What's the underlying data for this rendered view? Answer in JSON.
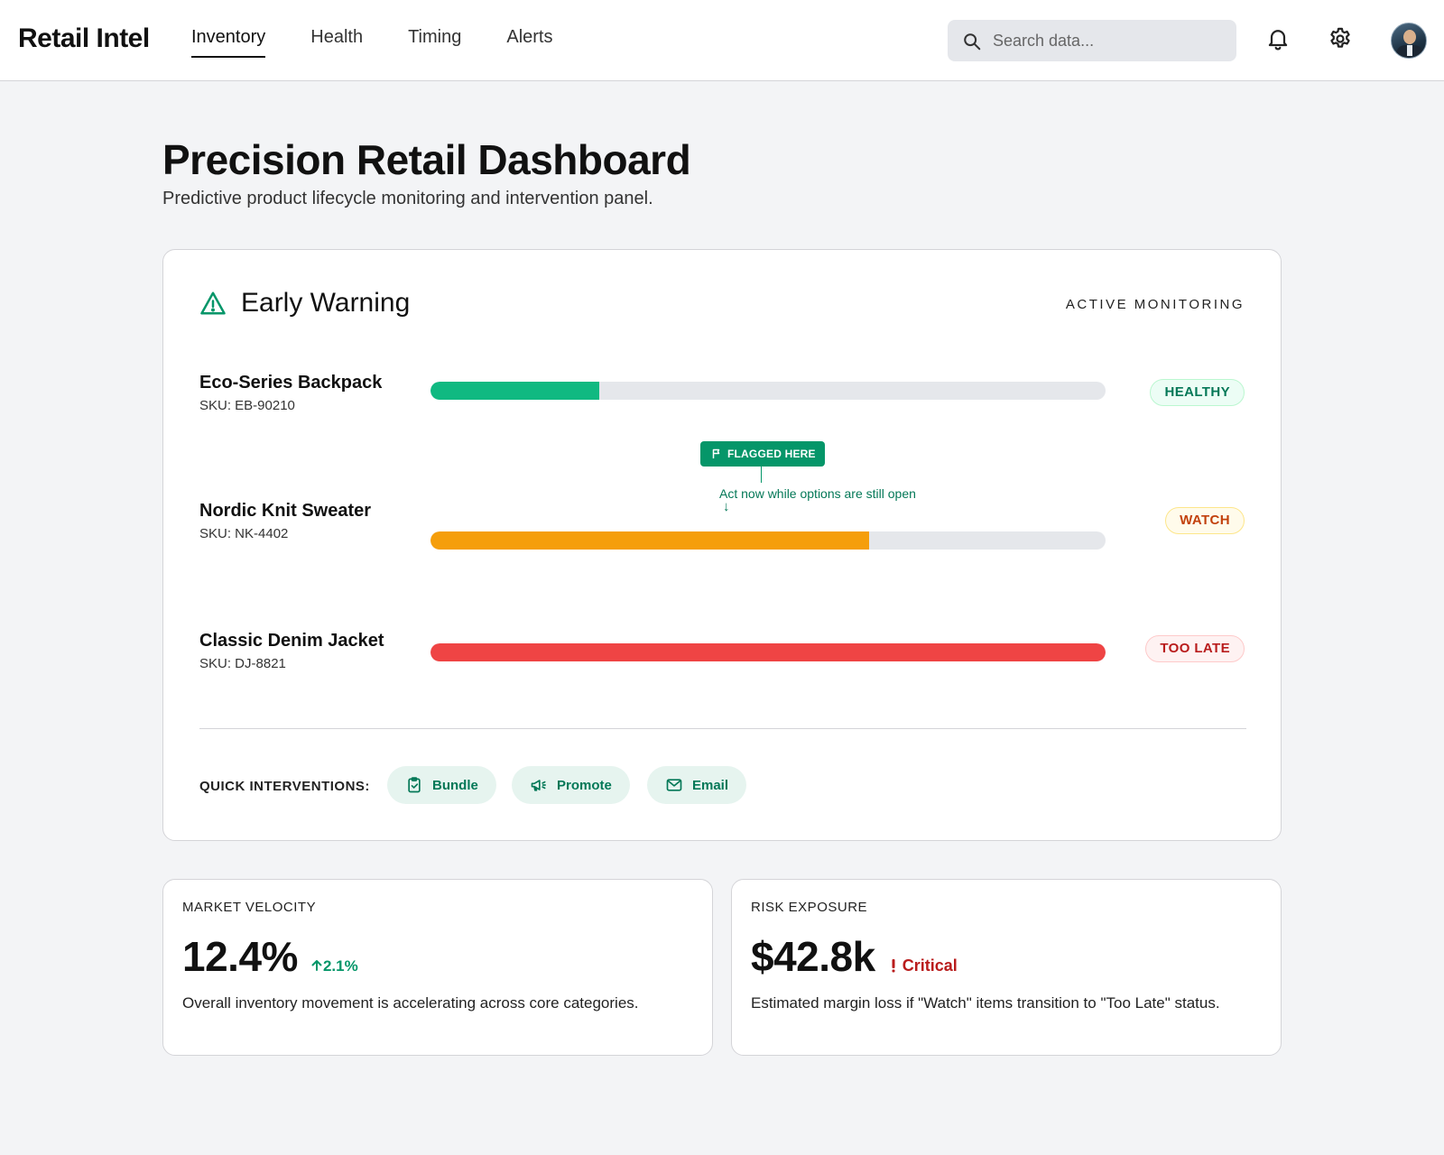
{
  "header": {
    "brand": "Retail Intel",
    "nav": [
      {
        "label": "Inventory",
        "active": true
      },
      {
        "label": "Health",
        "active": false
      },
      {
        "label": "Timing",
        "active": false
      },
      {
        "label": "Alerts",
        "active": false
      }
    ],
    "search_placeholder": "Search data...",
    "icons": [
      "search-icon",
      "bell-icon",
      "gear-icon",
      "avatar"
    ]
  },
  "page": {
    "title": "Precision Retail Dashboard",
    "subtitle": "Predictive product lifecycle monitoring and intervention panel."
  },
  "early_warning": {
    "title": "Early Warning",
    "status": "ACTIVE MONITORING",
    "products": [
      {
        "name": "Eco-Series Backpack",
        "sku": "SKU: EB-90210",
        "progress": 0.25,
        "color": "#10b981",
        "badge": "HEALTHY"
      },
      {
        "name": "Nordic Knit Sweater",
        "sku": "SKU: NK-4402",
        "progress": 0.65,
        "color": "#f59e0b",
        "badge": "WATCH"
      },
      {
        "name": "Classic Denim Jacket",
        "sku": "SKU: DJ-8821",
        "progress": 1.0,
        "color": "#ef4444",
        "badge": "TOO LATE"
      }
    ],
    "flag": {
      "label": "FLAGGED HERE",
      "note": "Act now while options are still open",
      "arrow": "↓"
    },
    "quick_interventions": {
      "label": "QUICK INTERVENTIONS:",
      "buttons": [
        "Bundle",
        "Promote",
        "Email"
      ]
    }
  },
  "metrics": [
    {
      "label": "MARKET VELOCITY",
      "value": "12.4%",
      "delta": "2.1%",
      "description": "Overall inventory movement is accelerating across core categories."
    },
    {
      "label": "RISK EXPOSURE",
      "value": "$42.8k",
      "alert": "Critical",
      "description": "Estimated margin loss if \"Watch\" items transition to \"Too Late\" status."
    }
  ],
  "colors": {
    "accent": "#059669",
    "healthy": "#10b981",
    "watch": "#f59e0b",
    "late": "#ef4444"
  }
}
